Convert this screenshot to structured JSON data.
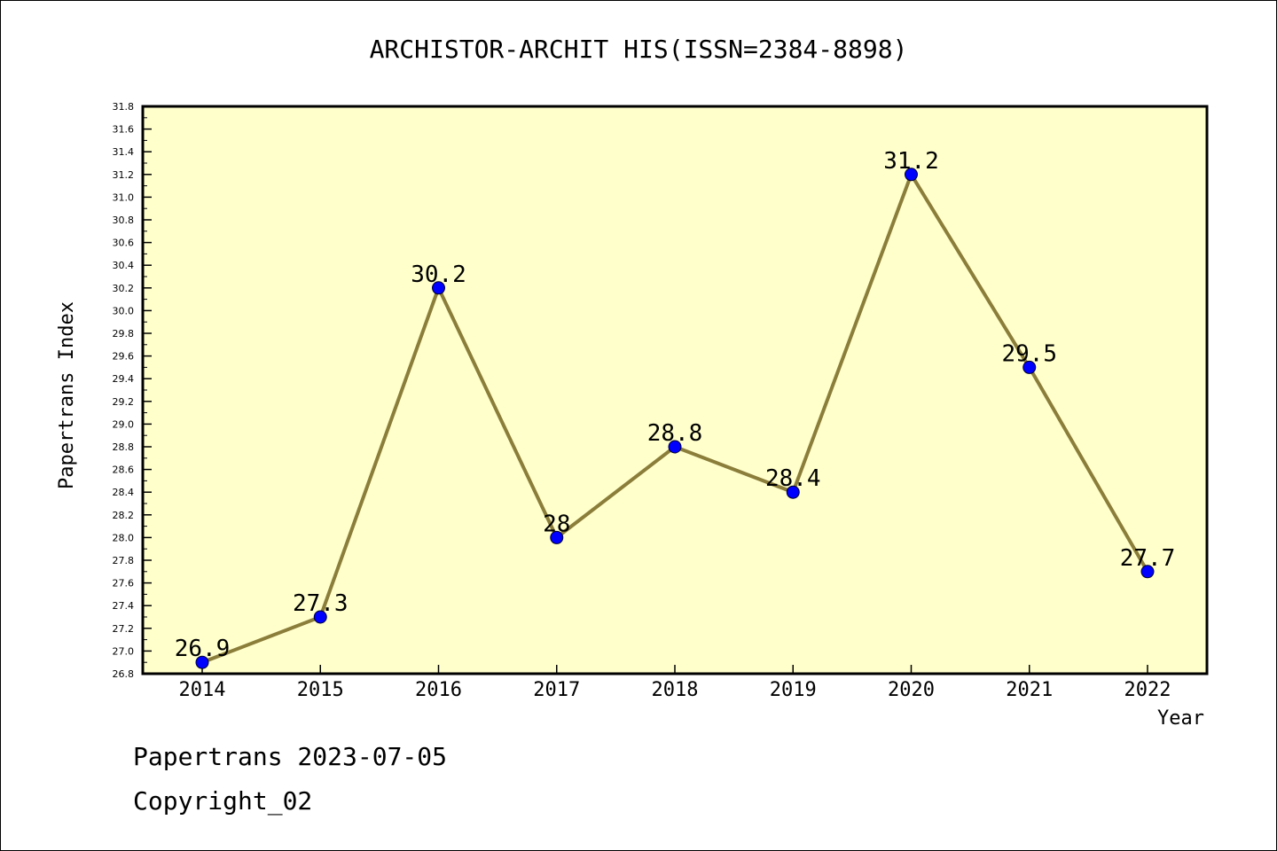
{
  "chart_data": {
    "type": "line",
    "title": "ARCHISTOR-ARCHIT HIS(ISSN=2384-8898)",
    "xlabel": "Year",
    "ylabel": "Papertrans Index",
    "categories": [
      "2014",
      "2015",
      "2016",
      "2017",
      "2018",
      "2019",
      "2020",
      "2021",
      "2022"
    ],
    "values": [
      26.9,
      27.3,
      30.2,
      28.0,
      28.8,
      28.4,
      31.2,
      29.5,
      27.7
    ],
    "data_labels": [
      "26.9",
      "27.3",
      "30.2",
      "28",
      "28.8",
      "28.4",
      "31.2",
      "29.5",
      "27.7"
    ],
    "ylim": [
      26.8,
      31.8
    ],
    "yticks": [
      "26.8",
      "27.0",
      "27.2",
      "27.4",
      "27.6",
      "27.8",
      "28.0",
      "28.2",
      "28.4",
      "28.6",
      "28.8",
      "29.0",
      "29.2",
      "29.4",
      "29.6",
      "29.8",
      "30.0",
      "30.2",
      "30.4",
      "30.6",
      "30.8",
      "31.0",
      "31.2",
      "31.4",
      "31.6",
      "31.8"
    ],
    "grid": false,
    "legend": "none"
  },
  "colors": {
    "plot_background": "#ffffcc",
    "line": "#8b7d3a",
    "marker": "#0000ff"
  },
  "footer": {
    "date_line": "Papertrans 2023-07-05",
    "copyright": "Copyright_02"
  }
}
